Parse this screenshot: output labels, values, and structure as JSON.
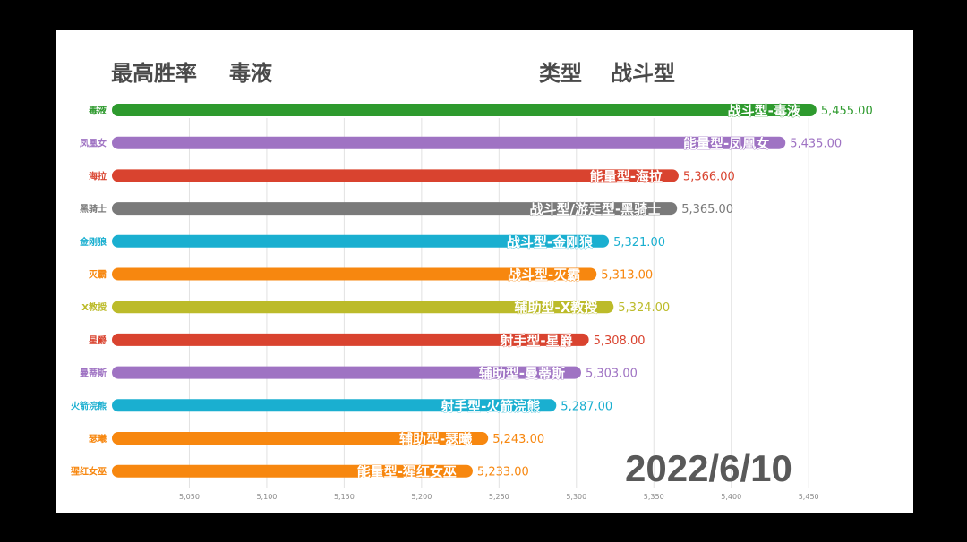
{
  "header": {
    "left_label": "最高胜率",
    "left_value": "毒液",
    "right_label": "类型",
    "right_value": "战斗型"
  },
  "date": "2022/6/10",
  "chart_data": {
    "type": "bar",
    "orientation": "horizontal",
    "title": "",
    "xlabel": "",
    "ylabel": "",
    "xlim": [
      5000,
      5470
    ],
    "x_ticks": [
      5050,
      5100,
      5150,
      5200,
      5250,
      5300,
      5350,
      5400,
      5450
    ],
    "x_tick_labels": [
      "5,050",
      "5,100",
      "5,150",
      "5,200",
      "5,250",
      "5,300",
      "5,350",
      "5,400",
      "5,450"
    ],
    "grid": true,
    "categories": [
      "毒液",
      "凤凰女",
      "海拉",
      "黑骑士",
      "金刚狼",
      "灭霸",
      "X教授",
      "星爵",
      "曼蒂斯",
      "火箭浣熊",
      "瑟曦",
      "猩红女巫"
    ],
    "values": [
      5455.0,
      5435.0,
      5366.0,
      5365.0,
      5321.0,
      5313.0,
      5324.0,
      5308.0,
      5303.0,
      5287.0,
      5243.0,
      5233.0
    ],
    "value_labels": [
      "5,455.00",
      "5,435.00",
      "5,366.00",
      "5,365.00",
      "5,321.00",
      "5,313.00",
      "5,324.00",
      "5,308.00",
      "5,303.00",
      "5,287.00",
      "5,243.00",
      "5,233.00"
    ],
    "bar_labels": [
      "战斗型-毒液",
      "能量型-凤凰女",
      "能量型-海拉",
      "战斗型/游走型-黑骑士",
      "战斗型-金刚狼",
      "战斗型-灭霸",
      "辅助型-X教授",
      "射手型-星爵",
      "辅助型-曼蒂斯",
      "射手型-火箭浣熊",
      "辅助型-瑟曦",
      "能量型-猩红女巫"
    ],
    "colors": [
      "#2e9a2e",
      "#9f73c3",
      "#d9432f",
      "#7a7a7a",
      "#1aafd0",
      "#f7870f",
      "#bcbb2a",
      "#d9432f",
      "#9f73c3",
      "#1aafd0",
      "#f7870f",
      "#f7870f"
    ]
  }
}
